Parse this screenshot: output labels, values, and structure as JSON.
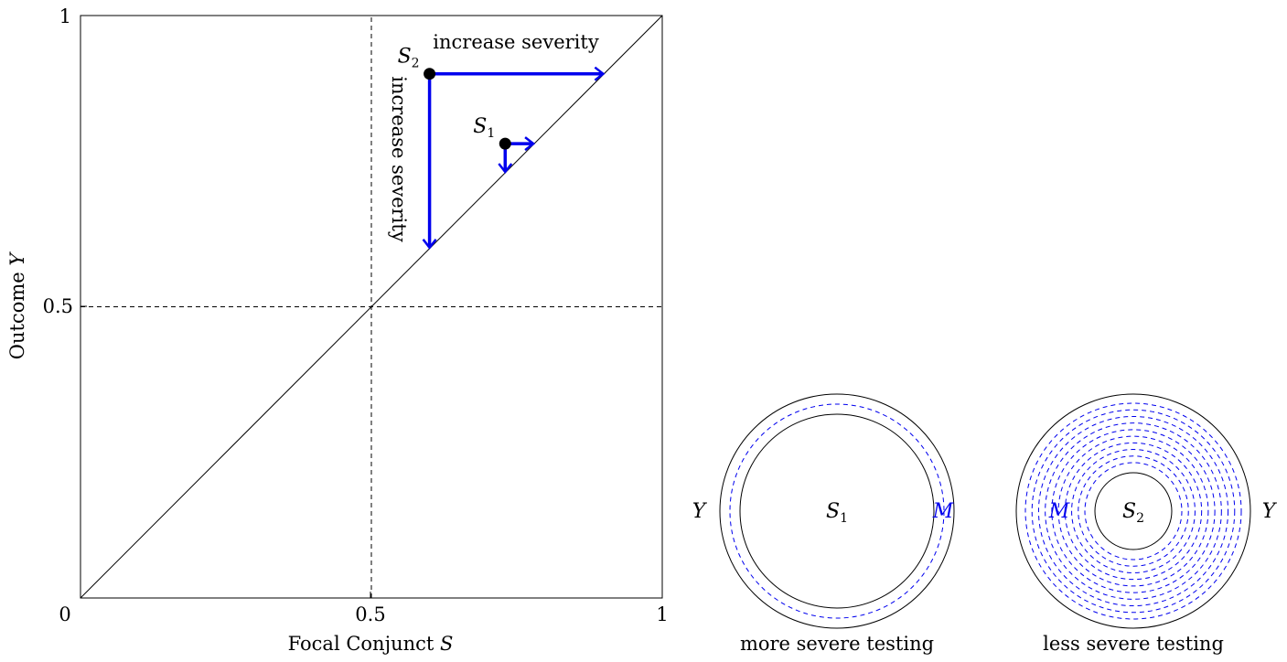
{
  "chart_data": {
    "type": "scatter",
    "xlabel": {
      "text": "Focal Conjunct ",
      "var": "S"
    },
    "ylabel": {
      "text": "Outcome ",
      "var": "Y"
    },
    "xlim": [
      0,
      1
    ],
    "ylim": [
      0,
      1
    ],
    "ticks": {
      "x0": "0",
      "xmid": "0.5",
      "x1": "1",
      "ymid": "0.5",
      "y1": "1"
    },
    "reference_lines": {
      "x": 0.5,
      "y": 0.5,
      "diagonal": true
    },
    "points": [
      {
        "base": "S",
        "sub": "1",
        "x": 0.73,
        "y": 0.78,
        "arrow_to_x": 0.78,
        "arrow_to_y": 0.73
      },
      {
        "base": "S",
        "sub": "2",
        "x": 0.6,
        "y": 0.9,
        "arrow_to_x": 0.9,
        "arrow_to_y": 0.6
      }
    ],
    "annotations": {
      "horizontal": "increase severity",
      "vertical": "increase severity"
    },
    "colors": {
      "arrow": "#0000ee",
      "point": "#000000"
    }
  },
  "venn": [
    {
      "inner_base": "S",
      "inner_sub": "1",
      "outer": "Y",
      "model": "M",
      "caption": "more severe testing",
      "dashed_rings": 1
    },
    {
      "inner_base": "S",
      "inner_sub": "2",
      "outer": "Y",
      "model": "M",
      "caption": "less severe testing",
      "dashed_rings": 10
    }
  ]
}
